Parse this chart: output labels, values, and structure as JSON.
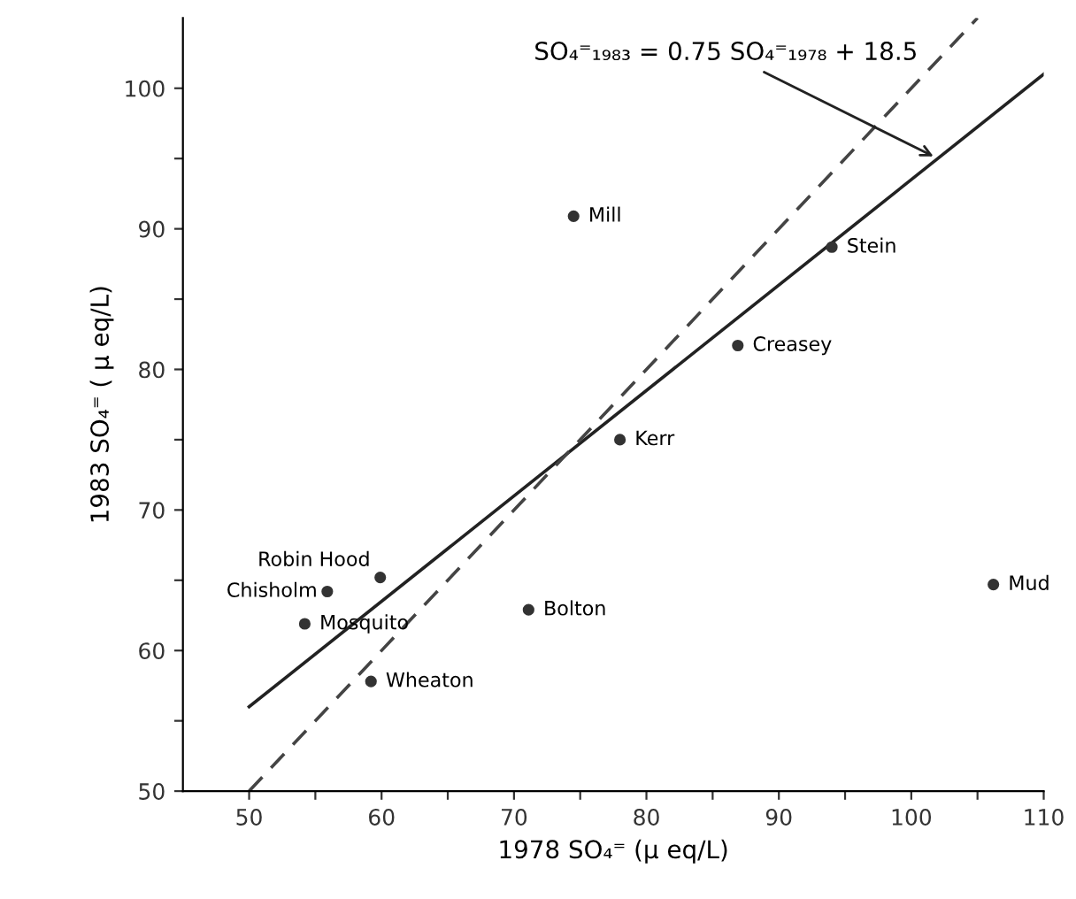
{
  "chart_data": {
    "type": "scatter",
    "xlabel": "1978 SO₄⁼ (μ eq/L)",
    "ylabel": "1983 SO₄⁼ ( μ eq/L)",
    "xlim": [
      45,
      110
    ],
    "ylim": [
      50,
      105
    ],
    "xticks": [
      50,
      {
        "value": 55,
        "label": null
      },
      60,
      {
        "value": 65,
        "label": null
      },
      70,
      {
        "value": 75,
        "label": null
      },
      80,
      {
        "value": 85,
        "label": null
      },
      90,
      {
        "value": 95,
        "label": null
      },
      100,
      {
        "value": 105,
        "label": null
      },
      110
    ],
    "yticks": [
      50,
      {
        "value": 55,
        "label": null
      },
      60,
      {
        "value": 65,
        "label": null
      },
      70,
      {
        "value": 75,
        "label": null
      },
      80,
      {
        "value": 85,
        "label": null
      },
      90,
      {
        "value": 95,
        "label": null
      },
      100
    ],
    "grid": false,
    "series": [
      {
        "color": "#333333",
        "marker": "circle",
        "x": [
          74.5,
          94.0,
          86.9,
          78.0,
          59.9,
          55.9,
          54.2,
          71.1,
          59.2,
          106.2
        ],
        "values": [
          90.9,
          88.7,
          81.7,
          75.0,
          65.2,
          64.2,
          61.9,
          62.9,
          57.8,
          64.7
        ]
      },
      {
        "type": "line",
        "color": "#222222",
        "line_style": "solid",
        "marker": "none",
        "x": [
          50,
          110
        ],
        "values": [
          56,
          101
        ]
      },
      {
        "type": "line",
        "color": "#444444",
        "line_style": "dashed",
        "marker": "none",
        "x": [
          50,
          105
        ],
        "values": [
          50,
          105
        ]
      }
    ],
    "annotations": [
      {
        "text": "Mill",
        "x": 74.5,
        "y": 90.9
      },
      {
        "text": "Stein",
        "x": 94.0,
        "y": 88.7
      },
      {
        "text": "Creasey",
        "x": 86.9,
        "y": 81.7
      },
      {
        "text": "Kerr",
        "x": 78.0,
        "y": 75.0
      },
      {
        "text": "Robin Hood",
        "x": 59.9,
        "y": 65.2
      },
      {
        "text": "Chisholm",
        "x": 55.9,
        "y": 64.2
      },
      {
        "text": "Mosquito",
        "x": 54.2,
        "y": 61.9
      },
      {
        "text": "Bolton",
        "x": 71.1,
        "y": 62.9
      },
      {
        "text": "Wheaton",
        "x": 59.2,
        "y": 57.8
      },
      {
        "text": "Mud",
        "x": 106.2,
        "y": 64.7
      },
      {
        "text": "SO₄⁼₁₉₈₃ = 0.75 SO₄⁼₁₉₇₈ + 18.5",
        "x": 102,
        "y": 95
      }
    ]
  }
}
